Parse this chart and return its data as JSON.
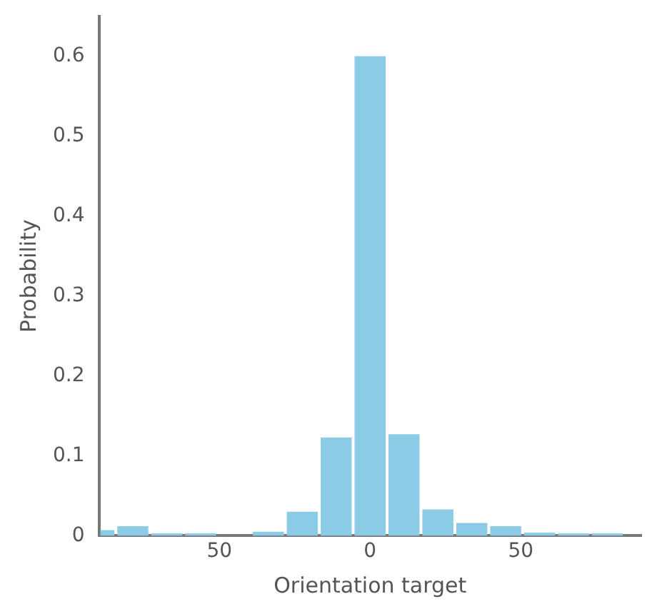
{
  "chart_data": {
    "type": "histogram",
    "xlabel": "Orientation target",
    "ylabel": "Probability",
    "bins": [
      -90,
      -84.375,
      -73.125,
      -61.875,
      -50.625,
      -39.375,
      -28.125,
      -16.875,
      -5.625,
      5.625,
      16.875,
      28.125,
      39.375,
      50.625,
      61.875,
      73.125,
      84.375
    ],
    "values": [
      0.007,
      0.012,
      0.003,
      0.003,
      0,
      0.005,
      0.03,
      0.123,
      0.6,
      0.127,
      0.033,
      0.016,
      0.012,
      0.004,
      0.003,
      0.003
    ],
    "color": "#8ccbe6",
    "xlim": [
      -90,
      90
    ],
    "xticks": [
      {
        "value": -50,
        "label": "50"
      },
      0,
      50
    ],
    "ylim": [
      0,
      0.65
    ],
    "yticks": [
      0,
      0.1,
      0.2,
      0.3,
      0.4,
      0.5,
      0.6
    ],
    "grid": false
  }
}
